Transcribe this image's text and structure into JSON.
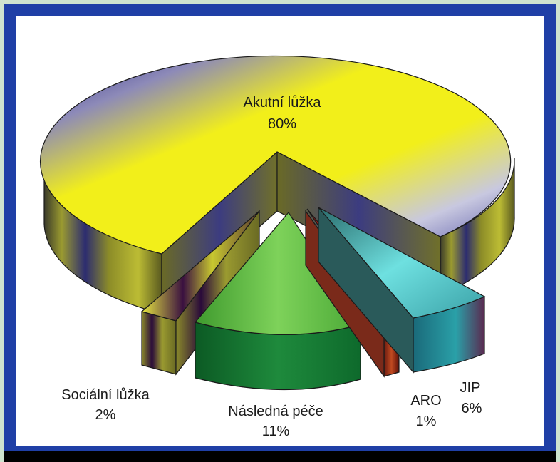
{
  "chart_data": {
    "type": "pie",
    "title": "",
    "legend": "none",
    "exploded": true,
    "three_d": true,
    "slices": [
      {
        "label": "Akutní lůžka",
        "value_label": "80%",
        "value": 80,
        "color": "#f2ef1a"
      },
      {
        "label": "JIP",
        "value_label": "6%",
        "value": 6,
        "color": "#55cccc"
      },
      {
        "label": "ARO",
        "value_label": "1%",
        "value": 1,
        "color": "#ee2a1a"
      },
      {
        "label": "Následná péče",
        "value_label": "11%",
        "value": 11,
        "color": "#5cc23c"
      },
      {
        "label": "Sociální lůžka",
        "value_label": "2%",
        "value": 2,
        "color": "#f4f23a"
      }
    ]
  }
}
